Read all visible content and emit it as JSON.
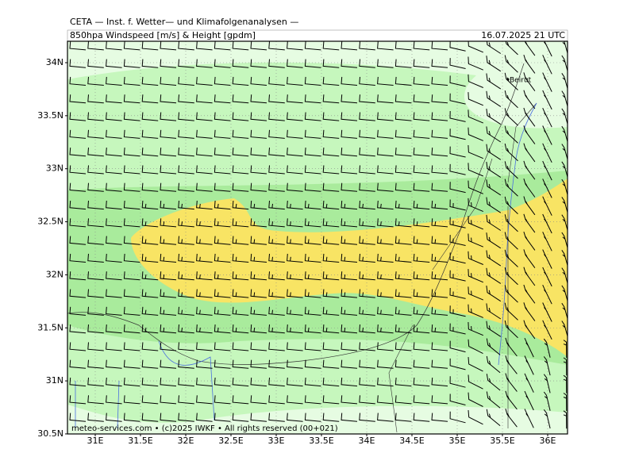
{
  "header": {
    "institute": "CETA — Inst. f. Wetter— und Klimafolgenanalysen —",
    "product": "850hpa Windspeed [m/s] & Height [gpdm]",
    "valid_time": "16.07.2025 21 UTC"
  },
  "map": {
    "lat_labels": [
      {
        "value": 34,
        "label": "34N"
      },
      {
        "value": 33.5,
        "label": "33.5N"
      },
      {
        "value": 33,
        "label": "33N"
      },
      {
        "value": 32.5,
        "label": "32.5N"
      },
      {
        "value": 32,
        "label": "32N"
      },
      {
        "value": 31.5,
        "label": "31.5N"
      },
      {
        "value": 31,
        "label": "31N"
      },
      {
        "value": 30.5,
        "label": "30.5N"
      }
    ],
    "lon_labels": [
      {
        "value": 31,
        "label": "31E"
      },
      {
        "value": 31.5,
        "label": "31.5E"
      },
      {
        "value": 32,
        "label": "32E"
      },
      {
        "value": 32.5,
        "label": "32.5E"
      },
      {
        "value": 33,
        "label": "33E"
      },
      {
        "value": 33.5,
        "label": "33.5E"
      },
      {
        "value": 34,
        "label": "34E"
      },
      {
        "value": 34.5,
        "label": "34.5E"
      },
      {
        "value": 35,
        "label": "35E"
      },
      {
        "value": 35.5,
        "label": "35.5E"
      },
      {
        "value": 36,
        "label": "36E"
      }
    ],
    "city": "Beirut"
  },
  "footer": {
    "copyright": "meteo-services.com • (c)2025 IWKF • All rights reserved (00+021)"
  }
}
